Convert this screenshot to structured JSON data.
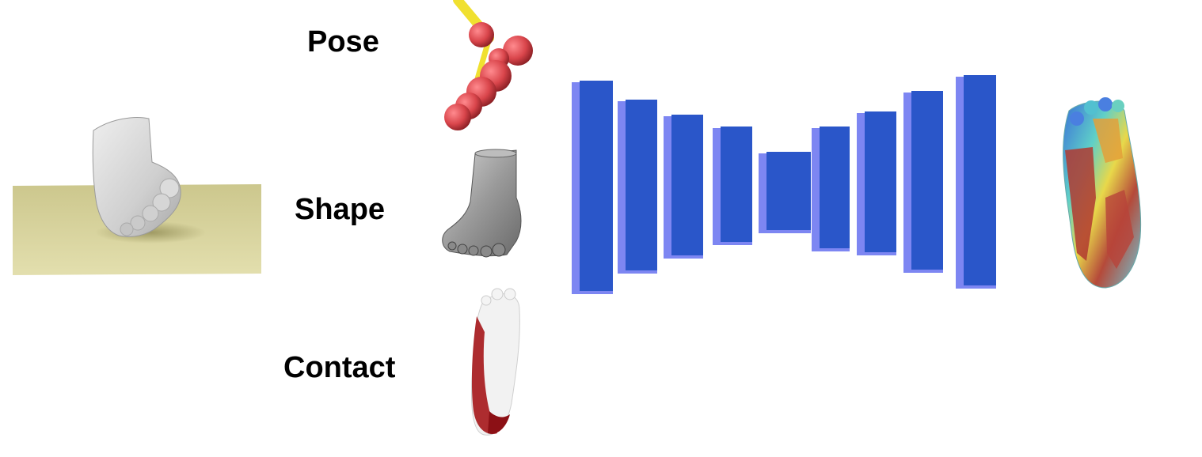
{
  "labels": {
    "pose": "Pose",
    "shape": "Shape",
    "contact": "Contact"
  },
  "colors": {
    "ground": "#d8d39a",
    "foot_gray": "#b8b8b8",
    "joint_red": "#d9454b",
    "bone_yellow": "#f0e030",
    "contact_red": "#a5161a",
    "network_front": "#2a56c9",
    "network_side": "#7d86f2"
  },
  "network_layers": 9,
  "icons": {
    "input_render": "foot-on-ground-render",
    "pose": "skeleton-joints-icon",
    "shape": "gray-foot-mesh-icon",
    "contact": "contact-map-foot-icon",
    "network": "encoder-decoder-network",
    "output": "pressure-heatmap-foot-icon"
  }
}
